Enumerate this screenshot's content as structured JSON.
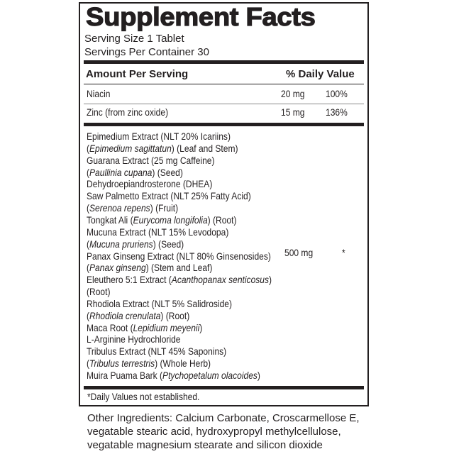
{
  "title": "Supplement Facts",
  "serving_size": "Serving Size 1 Tablet",
  "servings_per_container": "Servings Per Container 30",
  "header": {
    "amount": "Amount Per Serving",
    "dv": "% Daily Value"
  },
  "nutrients": [
    {
      "name": "Niacin",
      "amount": "20 mg",
      "dv": "100%"
    },
    {
      "name": "Zinc (from zinc oxide)",
      "amount": "15 mg",
      "dv": "136%"
    }
  ],
  "blend": {
    "amount": "500 mg",
    "dv": "*",
    "lines": [
      [
        {
          "t": "Epimedium Extract (NLT 20% Icariins)",
          "i": false
        }
      ],
      [
        {
          "t": "(",
          "i": false
        },
        {
          "t": "Epimedium sagittatun",
          "i": true
        },
        {
          "t": ") (Leaf and Stem)",
          "i": false
        }
      ],
      [
        {
          "t": "Guarana Extract (25 mg Caffeine)",
          "i": false
        }
      ],
      [
        {
          "t": "(",
          "i": false
        },
        {
          "t": "Paullinia cupana",
          "i": true
        },
        {
          "t": ")  (Seed)",
          "i": false
        }
      ],
      [
        {
          "t": "Dehydroepiandrosterone (DHEA)",
          "i": false
        }
      ],
      [
        {
          "t": "Saw Palmetto Extract (NLT 25% Fatty Acid)",
          "i": false
        }
      ],
      [
        {
          "t": "(",
          "i": false
        },
        {
          "t": "Serenoa repens",
          "i": true
        },
        {
          "t": ") (Fruit)",
          "i": false
        }
      ],
      [
        {
          "t": "Tongkat Ali (",
          "i": false
        },
        {
          "t": "Eurycoma longifolia",
          "i": true
        },
        {
          "t": ") (Root)",
          "i": false
        }
      ],
      [
        {
          "t": "Mucuna Extract (NLT 15% Levodopa)",
          "i": false
        }
      ],
      [
        {
          "t": "(",
          "i": false
        },
        {
          "t": "Mucuna pruriens",
          "i": true
        },
        {
          "t": ") (Seed)",
          "i": false
        }
      ],
      [
        {
          "t": "Panax Ginseng Extract (NLT 80% Ginsenosides)",
          "i": false
        }
      ],
      [
        {
          "t": "(",
          "i": false
        },
        {
          "t": "Panax ginseng",
          "i": true
        },
        {
          "t": ") (Stem and Leaf)",
          "i": false
        }
      ],
      [
        {
          "t": "Eleuthero 5:1 Extract (",
          "i": false
        },
        {
          "t": "Acanthopanax senticosus",
          "i": true
        },
        {
          "t": ")",
          "i": false
        }
      ],
      [
        {
          "t": "(Root)",
          "i": false
        }
      ],
      [
        {
          "t": "Rhodiola Extract (NLT 5% Salidroside)",
          "i": false
        }
      ],
      [
        {
          "t": "(",
          "i": false
        },
        {
          "t": "Rhodiola crenulata",
          "i": true
        },
        {
          "t": ") (Root)",
          "i": false
        }
      ],
      [
        {
          "t": "Maca Root (",
          "i": false
        },
        {
          "t": "Lepidium meyenii",
          "i": true
        },
        {
          "t": ")",
          "i": false
        }
      ],
      [
        {
          "t": "L-Arginine Hydrochloride",
          "i": false
        }
      ],
      [
        {
          "t": "Tribulus Extract (NLT 45% Saponins)",
          "i": false
        }
      ],
      [
        {
          "t": "(",
          "i": false
        },
        {
          "t": "Tribulus terrestris",
          "i": true
        },
        {
          "t": ") (Whole Herb)",
          "i": false
        }
      ],
      [
        {
          "t": "Muira Puama Bark (",
          "i": false
        },
        {
          "t": "Ptychopetalum olacoides",
          "i": true
        },
        {
          "t": ")",
          "i": false
        }
      ]
    ]
  },
  "footnote": "*Daily Values not established.",
  "other_ingredients": "Other Ingredients: Calcium Carbonate, Croscarmellose E, vegatable stearic acid, hydroxypropyl methylcellulose, vegatable magnesium stearate and silicon dioxide",
  "colors": {
    "ink": "#231f20",
    "rule_gray": "#8a8a8a"
  }
}
